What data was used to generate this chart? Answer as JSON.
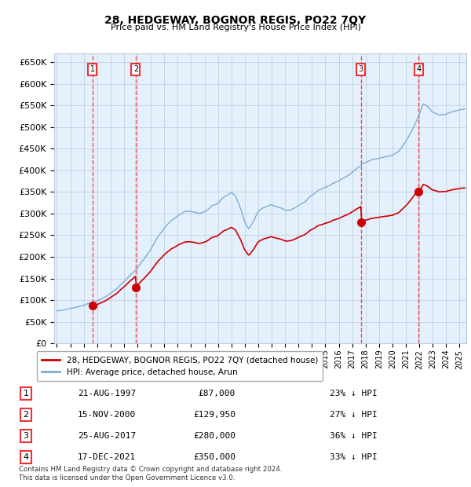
{
  "title": "28, HEDGEWAY, BOGNOR REGIS, PO22 7QY",
  "subtitle": "Price paid vs. HM Land Registry's House Price Index (HPI)",
  "legend_entry1": "28, HEDGEWAY, BOGNOR REGIS, PO22 7QY (detached house)",
  "legend_entry2": "HPI: Average price, detached house, Arun",
  "footer": "Contains HM Land Registry data © Crown copyright and database right 2024.\nThis data is licensed under the Open Government Licence v3.0.",
  "yticks": [
    0,
    50000,
    100000,
    150000,
    200000,
    250000,
    300000,
    350000,
    400000,
    450000,
    500000,
    550000,
    600000,
    650000
  ],
  "sale_dates_num": [
    1997.644,
    2000.877,
    2017.647,
    2021.956
  ],
  "sale_prices": [
    87000,
    129950,
    280000,
    350000
  ],
  "sale_labels": [
    "1",
    "2",
    "3",
    "4"
  ],
  "table_rows": [
    {
      "num": "1",
      "date": "21-AUG-1997",
      "price": "£87,000",
      "pct": "23% ↓ HPI"
    },
    {
      "num": "2",
      "date": "15-NOV-2000",
      "price": "£129,950",
      "pct": "27% ↓ HPI"
    },
    {
      "num": "3",
      "date": "25-AUG-2017",
      "price": "£280,000",
      "pct": "36% ↓ HPI"
    },
    {
      "num": "4",
      "date": "17-DEC-2021",
      "price": "£350,000",
      "pct": "33% ↓ HPI"
    }
  ],
  "hpi_color": "#7aaed6",
  "sale_color": "#cc0000",
  "vline_color": "#ee3333",
  "shade_color": "#ddeeff",
  "background_color": "#ffffff",
  "grid_color": "#bbccdd",
  "chart_bg": "#eef4fb",
  "title_color": "#000000",
  "xmin": 1994.8,
  "xmax": 2025.5,
  "ylim_max": 670000
}
